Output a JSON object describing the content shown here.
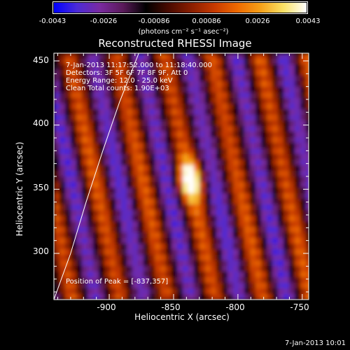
{
  "colorbar": {
    "ticks": [
      "-0.0043",
      "-0.0026",
      "-0.00086",
      "0.00086",
      "0.0026",
      "0.0043"
    ],
    "units": "(photons cm⁻² s⁻¹ asec⁻²)",
    "colors": [
      "#0000ff",
      "#4b2bd8",
      "#7a2aa0",
      "#5a1a5a",
      "#000000",
      "#4a0a00",
      "#8a1e00",
      "#c83a00",
      "#ee6a00",
      "#f5a018",
      "#fae266",
      "#ffffff"
    ]
  },
  "chart_data": {
    "type": "heatmap",
    "title": "Reconstructed RHESSI Image",
    "xlabel": "Heliocentric X (arcsec)",
    "ylabel": "Heliocentric Y (arcsec)",
    "xlim": [
      -943,
      -745
    ],
    "ylim": [
      264,
      456
    ],
    "xticks": [
      -900,
      -850,
      -800,
      -750
    ],
    "xtick_labels": [
      "-900",
      "-850",
      "-800",
      "-750"
    ],
    "yticks": [
      300,
      350,
      400,
      450
    ],
    "ytick_labels": [
      "300",
      "350",
      "400",
      "450"
    ],
    "info_lines": [
      "7-Jan-2013 11:17:52.000 to 11:18:40.000",
      "Detectors: 3F 5F 6F 7F 8F 9F, Att 0",
      "Energy Range: 12.0 - 25.0 keV",
      "Clean     Total counts: 1.90E+03"
    ],
    "peak_label": "Position of Peak = [-837,357]",
    "peak": [
      -837,
      357
    ],
    "limb_curve": [
      [
        -943,
        264
      ],
      [
        -930,
        300
      ],
      [
        -918,
        340
      ],
      [
        -905,
        380
      ],
      [
        -892,
        418
      ],
      [
        -877,
        456
      ]
    ]
  },
  "timestamp": "7-Jan-2013 10:01"
}
